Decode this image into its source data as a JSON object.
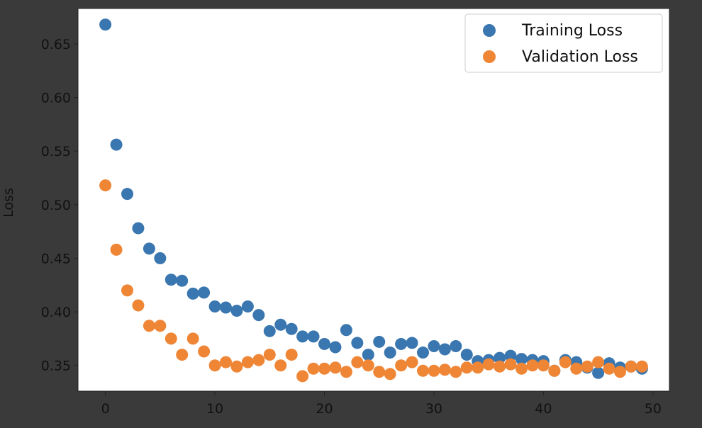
{
  "chart_data": {
    "type": "scatter",
    "title": "",
    "xlabel": "",
    "ylabel": "Loss",
    "xlim": [
      -2.5,
      51.5
    ],
    "ylim": [
      0.326,
      0.683
    ],
    "xticks": [
      0,
      10,
      20,
      30,
      40,
      50
    ],
    "yticks": [
      0.35,
      0.4,
      0.45,
      0.5,
      0.55,
      0.6,
      0.65
    ],
    "xtick_labels": [
      "0",
      "10",
      "20",
      "30",
      "40",
      "50"
    ],
    "ytick_labels": [
      "0.35",
      "0.40",
      "0.45",
      "0.50",
      "0.55",
      "0.60",
      "0.65"
    ],
    "grid": false,
    "legend_position": "top-right",
    "x": [
      0,
      1,
      2,
      3,
      4,
      5,
      6,
      7,
      8,
      9,
      10,
      11,
      12,
      13,
      14,
      15,
      16,
      17,
      18,
      19,
      20,
      21,
      22,
      23,
      24,
      25,
      26,
      27,
      28,
      29,
      30,
      31,
      32,
      33,
      34,
      35,
      36,
      37,
      38,
      39,
      40,
      41,
      42,
      43,
      44,
      45,
      46,
      47,
      48,
      49
    ],
    "series": [
      {
        "name": "Training Loss",
        "color": "#3a76af",
        "values": [
          0.668,
          0.556,
          0.51,
          0.478,
          0.459,
          0.45,
          0.43,
          0.429,
          0.417,
          0.418,
          0.405,
          0.404,
          0.401,
          0.405,
          0.397,
          0.382,
          0.388,
          0.384,
          0.377,
          0.377,
          0.37,
          0.367,
          0.383,
          0.371,
          0.36,
          0.372,
          0.362,
          0.37,
          0.371,
          0.362,
          0.368,
          0.365,
          0.368,
          0.36,
          0.354,
          0.355,
          0.357,
          0.359,
          0.356,
          0.355,
          0.354,
          0.345,
          0.355,
          0.353,
          0.348,
          0.343,
          0.352,
          0.348,
          0.349,
          0.347
        ]
      },
      {
        "name": "Validation Loss",
        "color": "#ef8636",
        "values": [
          0.518,
          0.458,
          0.42,
          0.406,
          0.387,
          0.387,
          0.375,
          0.36,
          0.375,
          0.363,
          0.35,
          0.353,
          0.349,
          0.353,
          0.355,
          0.36,
          0.35,
          0.36,
          0.34,
          0.347,
          0.347,
          0.348,
          0.344,
          0.353,
          0.35,
          0.344,
          0.342,
          0.35,
          0.353,
          0.345,
          0.345,
          0.346,
          0.344,
          0.348,
          0.348,
          0.351,
          0.349,
          0.351,
          0.347,
          0.35,
          0.35,
          0.345,
          0.353,
          0.347,
          0.349,
          0.353,
          0.347,
          0.344,
          0.349,
          0.349
        ]
      }
    ]
  }
}
